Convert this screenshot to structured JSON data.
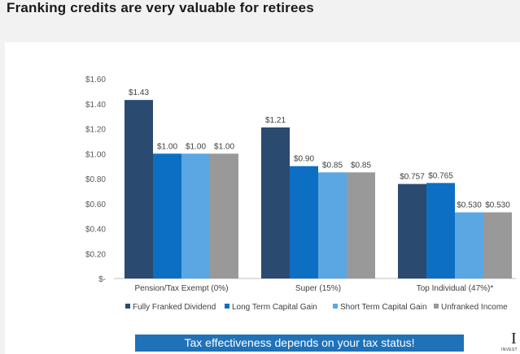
{
  "header": {
    "title": "Franking credits are very valuable for retirees"
  },
  "banner": {
    "text": "Tax effectiveness depends on your tax status!"
  },
  "logo": {
    "mark": "I",
    "sub": "INVEST"
  },
  "chart_data": {
    "type": "bar",
    "title": "",
    "xlabel": "",
    "ylabel": "",
    "ylim": [
      0,
      1.6
    ],
    "yticks": [
      0,
      0.2,
      0.4,
      0.6,
      0.8,
      1.0,
      1.2,
      1.4,
      1.6
    ],
    "ytick_labels": [
      "$-",
      "$0.20",
      "$0.40",
      "$0.60",
      "$0.80",
      "$1.00",
      "$1.20",
      "$1.40",
      "$1.60"
    ],
    "categories": [
      "Pension/Tax Exempt (0%)",
      "Super (15%)",
      "Top Individual (47%)*"
    ],
    "series": [
      {
        "name": "Fully Franked Dividend",
        "color": "#2b4a6f",
        "values": [
          1.43,
          1.21,
          0.757
        ],
        "labels": [
          "$1.43",
          "$1.21",
          "$0.757"
        ]
      },
      {
        "name": "Long Term Capital Gain",
        "color": "#0d6fc4",
        "values": [
          1.0,
          0.9,
          0.765
        ],
        "labels": [
          "$1.00",
          "$0.90",
          "$0.765"
        ]
      },
      {
        "name": "Short Term Capital Gain",
        "color": "#5ba7e3",
        "values": [
          1.0,
          0.85,
          0.53
        ],
        "labels": [
          "$1.00",
          "$0.85",
          "$0.530"
        ]
      },
      {
        "name": "Unfranked Income",
        "color": "#999999",
        "values": [
          1.0,
          0.85,
          0.53
        ],
        "labels": [
          "$1.00",
          "$0.85",
          "$0.530"
        ]
      }
    ],
    "grid": false,
    "legend": "bottom"
  }
}
